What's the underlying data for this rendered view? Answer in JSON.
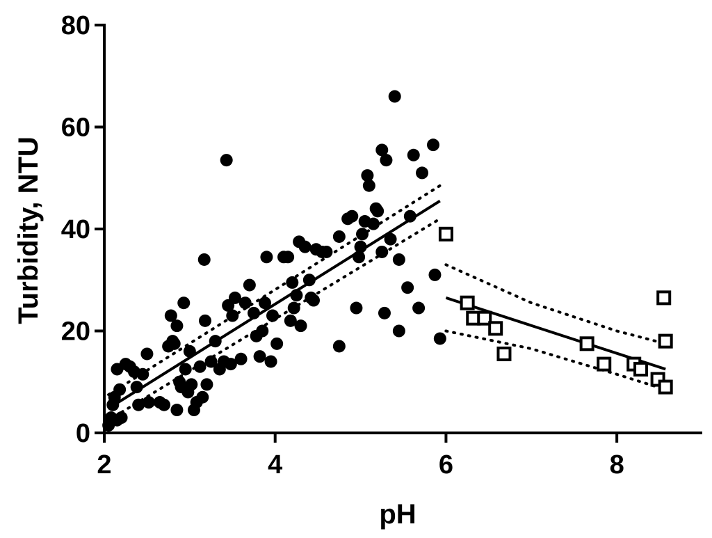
{
  "chart_data": {
    "type": "scatter",
    "title": "",
    "xlabel": "pH",
    "ylabel": "Turbidity, NTU",
    "xlim": [
      2,
      9
    ],
    "ylim": [
      0,
      80
    ],
    "x_ticks": [
      2,
      4,
      6,
      8
    ],
    "y_ticks": [
      0,
      20,
      40,
      60,
      80
    ],
    "grid": false,
    "legend": "none",
    "series": [
      {
        "marker": "filled-circle",
        "color": "#000000",
        "points": [
          [
            2.05,
            1.5
          ],
          [
            2.08,
            3.0
          ],
          [
            2.1,
            5.5
          ],
          [
            2.12,
            7.0
          ],
          [
            2.15,
            12.5
          ],
          [
            2.15,
            2.5
          ],
          [
            2.18,
            8.5
          ],
          [
            2.2,
            3.0
          ],
          [
            2.25,
            13.5
          ],
          [
            2.3,
            13.0
          ],
          [
            2.35,
            12.0
          ],
          [
            2.38,
            9.0
          ],
          [
            2.4,
            5.5
          ],
          [
            2.45,
            11.5
          ],
          [
            2.5,
            15.5
          ],
          [
            2.52,
            6.0
          ],
          [
            2.65,
            6.0
          ],
          [
            2.7,
            5.5
          ],
          [
            2.75,
            17.0
          ],
          [
            2.78,
            23.0
          ],
          [
            2.8,
            18.0
          ],
          [
            2.82,
            17.5
          ],
          [
            2.85,
            21.0
          ],
          [
            2.85,
            4.5
          ],
          [
            2.88,
            10.0
          ],
          [
            2.9,
            9.0
          ],
          [
            2.93,
            25.5
          ],
          [
            2.95,
            12.5
          ],
          [
            2.98,
            8.0
          ],
          [
            3.0,
            16.0
          ],
          [
            3.02,
            9.5
          ],
          [
            3.05,
            4.5
          ],
          [
            3.08,
            6.0
          ],
          [
            3.12,
            13.0
          ],
          [
            3.15,
            7.0
          ],
          [
            3.17,
            34.0
          ],
          [
            3.18,
            22.0
          ],
          [
            3.2,
            9.5
          ],
          [
            3.25,
            14.0
          ],
          [
            3.3,
            18.0
          ],
          [
            3.35,
            12.5
          ],
          [
            3.4,
            14.0
          ],
          [
            3.43,
            53.5
          ],
          [
            3.45,
            25.0
          ],
          [
            3.48,
            13.5
          ],
          [
            3.5,
            23.0
          ],
          [
            3.53,
            26.5
          ],
          [
            3.6,
            14.5
          ],
          [
            3.65,
            25.5
          ],
          [
            3.7,
            29.0
          ],
          [
            3.75,
            23.5
          ],
          [
            3.78,
            19.0
          ],
          [
            3.82,
            15.0
          ],
          [
            3.85,
            20.0
          ],
          [
            3.88,
            25.5
          ],
          [
            3.9,
            34.5
          ],
          [
            3.95,
            14.0
          ],
          [
            3.97,
            23.0
          ],
          [
            4.02,
            17.5
          ],
          [
            4.1,
            34.5
          ],
          [
            4.15,
            34.5
          ],
          [
            4.18,
            22.0
          ],
          [
            4.2,
            29.5
          ],
          [
            4.22,
            24.5
          ],
          [
            4.25,
            27.0
          ],
          [
            4.3,
            21.0
          ],
          [
            4.28,
            37.5
          ],
          [
            4.35,
            36.5
          ],
          [
            4.4,
            30.0
          ],
          [
            4.42,
            26.5
          ],
          [
            4.45,
            26.0
          ],
          [
            4.48,
            36.0
          ],
          [
            4.55,
            35.5
          ],
          [
            4.6,
            35.5
          ],
          [
            4.75,
            17.0
          ],
          [
            4.75,
            38.5
          ],
          [
            4.85,
            42.0
          ],
          [
            4.9,
            42.5
          ],
          [
            4.95,
            24.5
          ],
          [
            4.98,
            34.5
          ],
          [
            5.0,
            36.5
          ],
          [
            5.02,
            39.0
          ],
          [
            5.05,
            41.5
          ],
          [
            5.08,
            50.5
          ],
          [
            5.1,
            48.5
          ],
          [
            5.15,
            41.0
          ],
          [
            5.18,
            44.0
          ],
          [
            5.2,
            43.5
          ],
          [
            5.25,
            55.5
          ],
          [
            5.25,
            35.5
          ],
          [
            5.28,
            23.5
          ],
          [
            5.3,
            53.5
          ],
          [
            5.35,
            38.0
          ],
          [
            5.4,
            66.0
          ],
          [
            5.45,
            20.0
          ],
          [
            5.45,
            34.0
          ],
          [
            5.55,
            28.5
          ],
          [
            5.58,
            42.5
          ],
          [
            5.62,
            54.5
          ],
          [
            5.68,
            24.5
          ],
          [
            5.72,
            51.0
          ],
          [
            5.85,
            56.5
          ],
          [
            5.87,
            31.0
          ],
          [
            5.93,
            18.5
          ]
        ],
        "fit": {
          "x": [
            2.05,
            5.93
          ],
          "y": [
            4.8,
            45.5
          ]
        },
        "ci_upper": {
          "x": [
            2.05,
            5.93
          ],
          "y": [
            7.5,
            48.5
          ]
        },
        "ci_lower": {
          "x": [
            2.05,
            5.93
          ],
          "y": [
            2.5,
            42.0
          ]
        }
      },
      {
        "marker": "open-square",
        "color": "#000000",
        "points": [
          [
            6.0,
            39.0
          ],
          [
            6.25,
            25.5
          ],
          [
            6.32,
            22.5
          ],
          [
            6.45,
            22.5
          ],
          [
            6.58,
            20.5
          ],
          [
            6.68,
            15.5
          ],
          [
            7.65,
            17.5
          ],
          [
            7.85,
            13.5
          ],
          [
            8.2,
            13.5
          ],
          [
            8.28,
            12.5
          ],
          [
            8.48,
            10.5
          ],
          [
            8.55,
            26.5
          ],
          [
            8.57,
            18.0
          ],
          [
            8.57,
            9.0
          ]
        ],
        "fit": {
          "x": [
            6.0,
            8.57
          ],
          "y": [
            26.5,
            12.5
          ]
        },
        "ci_upper": {
          "x": [
            6.0,
            7.0,
            8.0,
            8.57
          ],
          "y": [
            33.0,
            25.5,
            20.0,
            17.5
          ]
        },
        "ci_lower": {
          "x": [
            6.0,
            7.0,
            8.0,
            8.57
          ],
          "y": [
            20.0,
            16.5,
            11.5,
            8.5
          ]
        }
      }
    ]
  }
}
